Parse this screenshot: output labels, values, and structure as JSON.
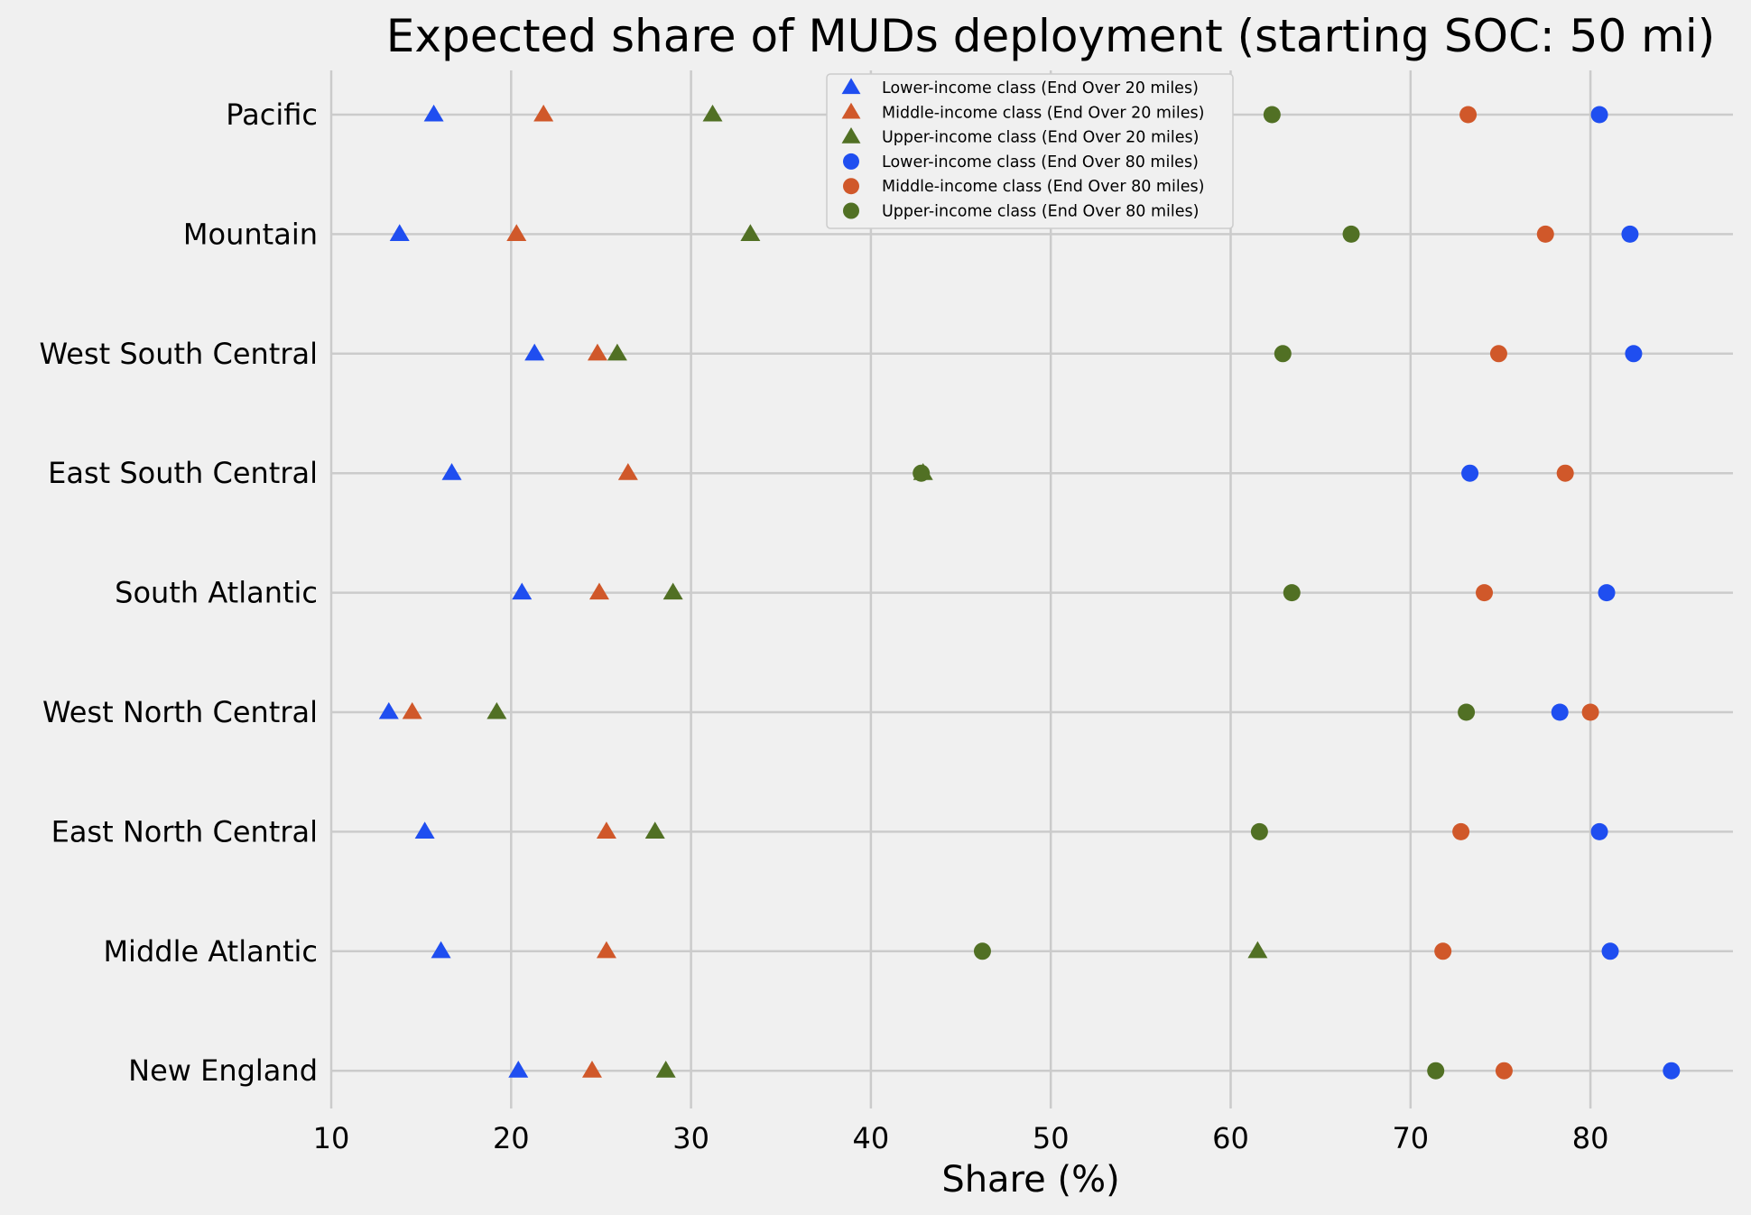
{
  "chart_data": {
    "type": "scatter",
    "title": "Expected share of MUDs deployment (starting SOC: 50 mi)",
    "xlabel": "Share (%)",
    "ylabel": "",
    "xlim": [
      10,
      88
    ],
    "xticks": [
      10,
      20,
      30,
      40,
      50,
      60,
      70,
      80
    ],
    "categories": [
      "New England",
      "Middle Atlantic",
      "East North Central",
      "West North Central",
      "South Atlantic",
      "East South Central",
      "West South Central",
      "Mountain",
      "Pacific"
    ],
    "grid": true,
    "legend_position": "top-center",
    "series": [
      {
        "name": "Lower-income class (End Over 20 miles)",
        "marker": "triangle",
        "color": "#1f4ef0",
        "values": [
          20.4,
          16.1,
          15.2,
          13.2,
          20.6,
          16.7,
          21.3,
          13.8,
          15.7
        ]
      },
      {
        "name": "Middle-income class (End Over 20 miles)",
        "marker": "triangle",
        "color": "#d0582a",
        "values": [
          24.5,
          25.3,
          25.3,
          14.5,
          24.9,
          26.5,
          24.8,
          20.3,
          21.8
        ]
      },
      {
        "name": "Upper-income class (End Over 20 miles)",
        "marker": "triangle",
        "color": "#517024",
        "values": [
          28.6,
          61.5,
          28.0,
          19.2,
          29.0,
          42.9,
          25.9,
          33.3,
          31.2
        ]
      },
      {
        "name": "Lower-income class (End Over 80 miles)",
        "marker": "circle",
        "color": "#1f4ef0",
        "values": [
          84.5,
          81.1,
          80.5,
          78.3,
          80.9,
          73.3,
          82.4,
          82.2,
          80.5
        ]
      },
      {
        "name": "Middle-income class (End Over 80 miles)",
        "marker": "circle",
        "color": "#d0582a",
        "values": [
          75.2,
          71.8,
          72.8,
          80.0,
          74.1,
          78.6,
          74.9,
          77.5,
          73.2
        ]
      },
      {
        "name": "Upper-income class (End Over 80 miles)",
        "marker": "circle",
        "color": "#517024",
        "values": [
          71.4,
          46.2,
          61.6,
          73.1,
          63.4,
          42.8,
          62.9,
          66.7,
          62.3
        ]
      }
    ]
  }
}
